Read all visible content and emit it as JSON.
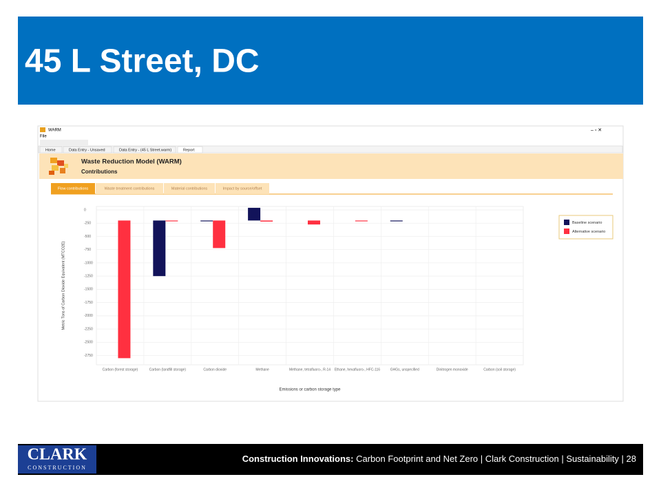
{
  "slide": {
    "title": "45 L Street, DC",
    "window_title": "WARM",
    "menu": [
      "File"
    ],
    "tabs": [
      "Home",
      "Data Entry - Unsaved",
      "Data Entry - (45 L Street.warm)",
      "Report"
    ],
    "report_title": "Waste Reduction Model (WARM)",
    "report_subtitle": "Contributions",
    "subtabs": [
      "Flow contributions",
      "Waste treatment contributions",
      "Material contributions",
      "Impact by source/offset"
    ],
    "footer": {
      "logo_top": "CLARK",
      "logo_bottom": "CONSTRUCTION",
      "lead": "Construction Innovations:",
      "topic": "Carbon Footprint and Net Zero",
      "company": "Clark Construction",
      "section": "Sustainability",
      "page": "28"
    }
  },
  "chart_data": {
    "type": "bar",
    "x_label": "Emissions or carbon storage type",
    "y_label": "Metric Tons of Carbon Dioxide Equivalent (MTCO2E)",
    "categories": [
      "Carbon (forest storage)",
      "Carbon (landfill storage)",
      "Carbon dioxide",
      "Methane",
      "Methane, tetrafluoro-, R-14",
      "Ethane, hexafluoro-, HFC-116",
      "GHGs, unspecified",
      "Dinitrogen monoxide",
      "Carbon (soil storage)"
    ],
    "base": -200,
    "series": [
      {
        "name": "Baseline scenario",
        "color": "#12135a",
        "values": [
          null,
          -1250,
          -210,
          40,
          null,
          null,
          -210,
          null,
          null
        ]
      },
      {
        "name": "Alternative scenario",
        "color": "#ff3040",
        "values": [
          -2800,
          -210,
          -720,
          -220,
          -275,
          -215,
          null,
          null,
          null
        ]
      }
    ],
    "ylim": [
      -2925,
      65
    ],
    "yticks": [
      0,
      -250,
      -500,
      -750,
      -1000,
      -1250,
      -1500,
      -1750,
      -2000,
      -2250,
      -2500,
      -2750
    ],
    "grid": true,
    "legend": "right"
  }
}
